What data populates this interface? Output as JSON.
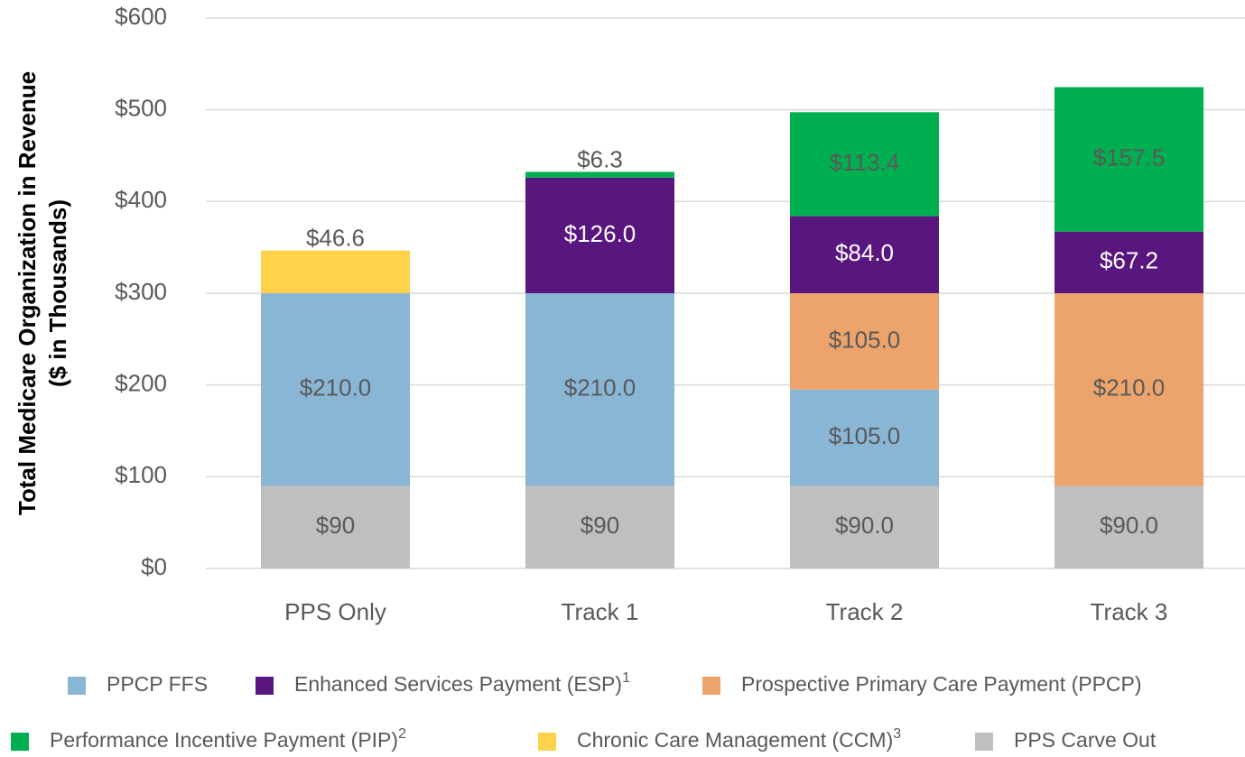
{
  "chart_data": {
    "type": "stacked_bar",
    "y_axis_label": [
      "Total Medicare Organization in Revenue",
      "($ in Thousands)"
    ],
    "categories": [
      "PPS Only",
      "Track 1",
      "Track 2",
      "Track 3"
    ],
    "ylim": [
      0,
      600
    ],
    "yticks": [
      {
        "value": 0,
        "label": "$0"
      },
      {
        "value": 100,
        "label": "$100"
      },
      {
        "value": 200,
        "label": "$200"
      },
      {
        "value": 300,
        "label": "$300"
      },
      {
        "value": 400,
        "label": "$400"
      },
      {
        "value": 500,
        "label": "$500"
      },
      {
        "value": 600,
        "label": "$600"
      }
    ],
    "grid": true,
    "series": [
      {
        "name": "PPS Carve Out",
        "color": "#bfbfbf",
        "label_color": "#595959",
        "values": [
          90,
          90,
          90,
          90
        ],
        "value_labels": [
          "$90",
          "$90",
          "$90.0",
          "$90.0"
        ]
      },
      {
        "name": "PPCP FFS",
        "color": "#8ab6d6",
        "label_color": "#595959",
        "values": [
          210,
          210,
          105,
          null
        ],
        "value_labels": [
          "$210.0",
          "$210.0",
          "$105.0",
          null
        ]
      },
      {
        "name": "Prospective Primary Care Payment (PPCP)",
        "color": "#eda46c",
        "label_color": "#595959",
        "values": [
          null,
          null,
          105,
          210
        ],
        "value_labels": [
          null,
          null,
          "$105.0",
          "$210.0"
        ]
      },
      {
        "name": "Enhanced Services Payment (ESP)",
        "footnote": "1",
        "color": "#59167e",
        "label_color": "#ffffff",
        "values": [
          null,
          126,
          84,
          67.2
        ],
        "value_labels": [
          null,
          "$126.0",
          "$84.0",
          "$67.2"
        ]
      },
      {
        "name": "Chronic Care Management (CCM)",
        "footnote": "3",
        "color": "#ffd24c",
        "label_color": "#595959",
        "values": [
          46.6,
          null,
          null,
          null
        ],
        "value_labels": [
          "$46.6",
          null,
          null,
          null
        ]
      },
      {
        "name": "Performance Incentive Payment (PIP)",
        "footnote": "2",
        "color": "#00b050",
        "label_color": "#595959",
        "values": [
          null,
          6.3,
          113.4,
          157.5
        ],
        "value_labels": [
          null,
          "$6.3",
          "$113.4",
          "$157.5"
        ]
      }
    ]
  }
}
